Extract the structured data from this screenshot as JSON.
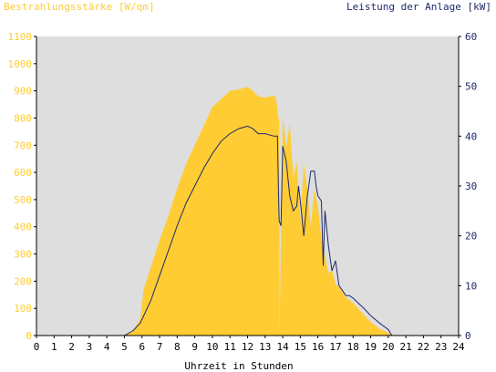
{
  "chart_data": {
    "type": "area",
    "title_left": "Bestrahlungsstärke [W/qm]",
    "title_right": "Leistung der Anlage [kW]",
    "xlabel": "Uhrzeit in Stunden",
    "x_ticks": [
      "0",
      "1",
      "2",
      "3",
      "4",
      "5",
      "6",
      "7",
      "8",
      "9",
      "10",
      "11",
      "12",
      "13",
      "14",
      "15",
      "16",
      "17",
      "18",
      "19",
      "20",
      "21",
      "22",
      "23",
      "24"
    ],
    "xlim": [
      0,
      24
    ],
    "y_left": {
      "ticks": [
        "0",
        "100",
        "200",
        "300",
        "400",
        "500",
        "600",
        "700",
        "800",
        "900",
        "1000",
        "1100"
      ],
      "ylim": [
        0,
        1100
      ]
    },
    "y_right": {
      "ticks": [
        "0",
        "10",
        "20",
        "30",
        "40",
        "50",
        "60"
      ],
      "ylim": [
        0,
        60
      ]
    },
    "series": [
      {
        "axis": "left",
        "style": "area",
        "x": [
          0,
          5.0,
          5.5,
          5.9,
          6.1,
          6.3,
          6.6,
          7.0,
          7.5,
          8.0,
          8.5,
          9.0,
          9.5,
          10.0,
          10.5,
          11.0,
          11.5,
          12.0,
          12.3,
          12.6,
          13.0,
          13.3,
          13.6,
          13.8,
          13.82,
          14.0,
          14.2,
          14.4,
          14.6,
          14.8,
          15.0,
          15.2,
          15.4,
          15.6,
          15.8,
          16.0,
          16.2,
          16.4,
          16.6,
          16.8,
          17.0,
          17.3,
          17.6,
          18.0,
          18.5,
          19.0,
          19.5,
          20.0,
          20.2,
          24
        ],
        "y": [
          0,
          0,
          20,
          60,
          170,
          210,
          270,
          350,
          440,
          540,
          630,
          700,
          770,
          840,
          870,
          900,
          905,
          915,
          900,
          880,
          875,
          880,
          880,
          780,
          0,
          810,
          690,
          780,
          580,
          640,
          420,
          630,
          540,
          400,
          540,
          470,
          360,
          290,
          230,
          240,
          190,
          170,
          140,
          120,
          85,
          50,
          25,
          10,
          0,
          0
        ]
      },
      {
        "axis": "right",
        "style": "line",
        "x": [
          0,
          5.0,
          5.5,
          5.9,
          6.1,
          6.5,
          7.0,
          7.5,
          8.0,
          8.5,
          9.0,
          9.5,
          10.0,
          10.5,
          11.0,
          11.5,
          12.0,
          12.3,
          12.6,
          13.0,
          13.5,
          13.7,
          13.75,
          13.8,
          13.9,
          14.0,
          14.2,
          14.4,
          14.6,
          14.8,
          14.9,
          15.0,
          15.2,
          15.4,
          15.6,
          15.8,
          15.9,
          16.0,
          16.2,
          16.3,
          16.4,
          16.6,
          16.8,
          17.0,
          17.2,
          17.4,
          17.6,
          17.8,
          18.0,
          18.3,
          18.6,
          19.0,
          19.5,
          20.0,
          20.2,
          24
        ],
        "y": [
          0,
          0,
          1,
          2.5,
          4,
          7,
          12,
          17,
          22,
          26.5,
          30,
          33.5,
          36.5,
          39,
          40.5,
          41.5,
          42,
          41.5,
          40.5,
          40.5,
          40,
          40,
          30,
          23,
          22,
          38,
          35,
          28,
          25,
          26,
          30,
          27,
          20,
          28,
          33,
          33,
          30,
          28,
          27,
          14,
          25,
          18,
          13,
          15,
          10,
          9,
          8,
          8,
          7.5,
          6.5,
          5.5,
          4,
          2.5,
          1.2,
          0,
          0
        ]
      }
    ],
    "colors": {
      "plot_bg": "#dedede",
      "irradiance_fill": "#ffcc33",
      "power_line": "#1f2a6b",
      "left_axis_text": "#ffcc33",
      "right_axis_text": "#1f2a6b",
      "axis": "#000000"
    }
  }
}
